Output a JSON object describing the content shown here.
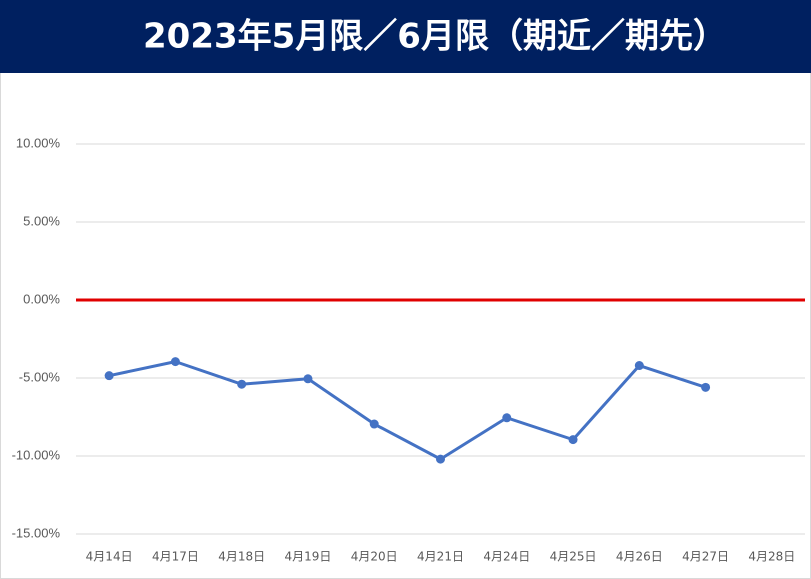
{
  "chart_data": {
    "type": "line",
    "title": "2023年5月限／6月限（期近／期先）",
    "categories": [
      "4月14日",
      "4月17日",
      "4月18日",
      "4月19日",
      "4月20日",
      "4月21日",
      "4月24日",
      "4月25日",
      "4月26日",
      "4月27日",
      "4月28日"
    ],
    "values": [
      -4.85,
      -3.95,
      -5.4,
      -5.05,
      -7.95,
      -10.2,
      -7.55,
      -8.95,
      -4.2,
      -5.6,
      null
    ],
    "color": "#4472c4",
    "title_background": "#002060",
    "zero_line_color": "#e00000",
    "ylim": [
      -15,
      10
    ],
    "yticks": [
      {
        "value": -15,
        "label": "-15.00%"
      },
      {
        "value": -10,
        "label": "-10.00%"
      },
      {
        "value": -5,
        "label": "-5.00%"
      },
      {
        "value": 0,
        "label": "0.00%"
      },
      {
        "value": 5,
        "label": "5.00%"
      },
      {
        "value": 10,
        "label": "10.00%"
      }
    ],
    "grid": true
  }
}
